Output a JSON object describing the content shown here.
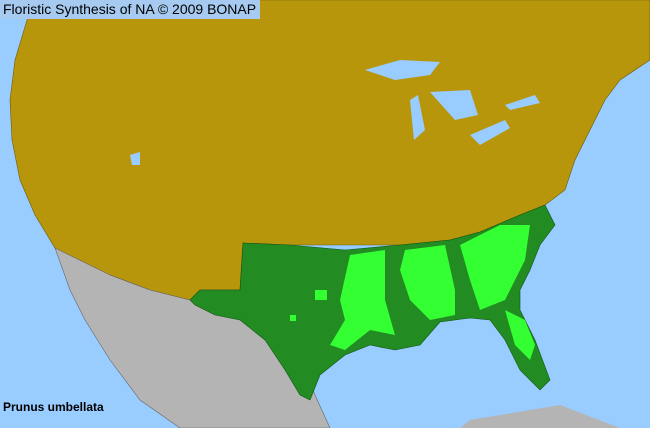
{
  "header": {
    "title": "Floristic Synthesis of NA © 2009 BONAP"
  },
  "species": {
    "name": "Prunus umbellata"
  },
  "legend_colors": {
    "ocean": "#99ccff",
    "species_absent_state": "#b8960c",
    "species_present_state": "#228b22",
    "species_present_county": "#33ff33",
    "outside_region": "#b4b4b4"
  }
}
